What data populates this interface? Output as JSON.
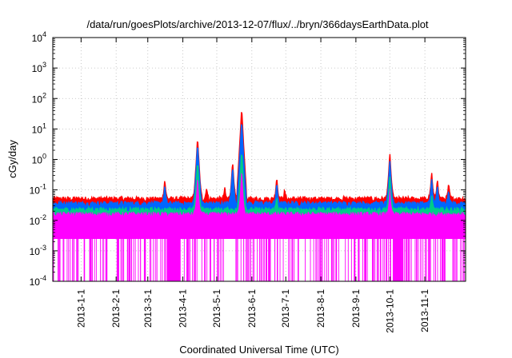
{
  "chart_data": {
    "type": "line",
    "title": "/data/run/goesPlots/archive/2013-12-07/flux/../bryn/366daysEarthData.plot",
    "xlabel": "Coordinated Universal Time (UTC)",
    "ylabel": "cGy/day",
    "yscale": "log",
    "ylim": [
      0.0001,
      10000
    ],
    "xlim": [
      "2012-12-07",
      "2013-12-07"
    ],
    "grid": true,
    "legend": "none",
    "y_ticks": [
      {
        "value": 0.0001,
        "base": "10",
        "exp": "-4"
      },
      {
        "value": 0.001,
        "base": "10",
        "exp": "-3"
      },
      {
        "value": 0.01,
        "base": "10",
        "exp": "-2"
      },
      {
        "value": 0.1,
        "base": "10",
        "exp": "-1"
      },
      {
        "value": 1,
        "base": "10",
        "exp": "0"
      },
      {
        "value": 10,
        "base": "10",
        "exp": "1"
      },
      {
        "value": 100,
        "base": "10",
        "exp": "2"
      },
      {
        "value": 1000,
        "base": "10",
        "exp": "3"
      },
      {
        "value": 10000,
        "base": "10",
        "exp": "4"
      }
    ],
    "x_ticks": [
      {
        "date": "2013-01-01",
        "label": "2013-1-1"
      },
      {
        "date": "2013-02-01",
        "label": "2013-2-1"
      },
      {
        "date": "2013-03-01",
        "label": "2013-3-1"
      },
      {
        "date": "2013-04-01",
        "label": "2013-4-1"
      },
      {
        "date": "2013-05-01",
        "label": "2013-5-1"
      },
      {
        "date": "2013-06-01",
        "label": "2013-6-1"
      },
      {
        "date": "2013-07-01",
        "label": "2013-7-1"
      },
      {
        "date": "2013-08-01",
        "label": "2013-8-1"
      },
      {
        "date": "2013-09-01",
        "label": "2013-9-1"
      },
      {
        "date": "2013-10-01",
        "label": "2013-10-1"
      },
      {
        "date": "2013-11-01",
        "label": "2013-11-1"
      }
    ],
    "series": [
      {
        "color": "#ff0000",
        "baseline": 0.05,
        "peaks": [
          [
            "2013-04-14",
            5.5
          ],
          [
            "2013-05-15",
            0.9
          ],
          [
            "2013-05-23",
            50
          ],
          [
            "2013-06-23",
            0.28
          ],
          [
            "2013-03-16",
            0.23
          ],
          [
            "2013-10-01",
            1.7
          ],
          [
            "2013-11-07",
            0.4
          ],
          [
            "2013-11-12",
            0.25
          ],
          [
            "2013-11-22",
            0.17
          ],
          [
            "2013-05-08",
            0.12
          ],
          [
            "2013-04-22",
            0.13
          ],
          [
            "2013-06-30",
            0.1
          ]
        ]
      },
      {
        "color": "#0066ff",
        "baseline": 0.035,
        "peaks": [
          [
            "2013-04-14",
            3.5
          ],
          [
            "2013-05-15",
            0.6
          ],
          [
            "2013-05-23",
            20
          ],
          [
            "2013-06-23",
            0.18
          ],
          [
            "2013-03-16",
            0.15
          ],
          [
            "2013-10-01",
            1.0
          ],
          [
            "2013-11-07",
            0.25
          ],
          [
            "2013-11-12",
            0.15
          ],
          [
            "2013-11-22",
            0.1
          ]
        ]
      },
      {
        "color": "#00cc88",
        "baseline": 0.022,
        "peaks": [
          [
            "2013-04-14",
            0.9
          ],
          [
            "2013-05-23",
            2.0
          ],
          [
            "2013-10-01",
            0.3
          ],
          [
            "2013-06-23",
            0.06
          ],
          [
            "2013-11-07",
            0.07
          ]
        ]
      },
      {
        "color": "#ff00ff",
        "baseline": 0.016,
        "floor": 0.0025,
        "peaks": [
          [
            "2013-04-14",
            0.3
          ],
          [
            "2013-05-23",
            0.5
          ],
          [
            "2013-10-01",
            0.12
          ]
        ]
      }
    ]
  }
}
